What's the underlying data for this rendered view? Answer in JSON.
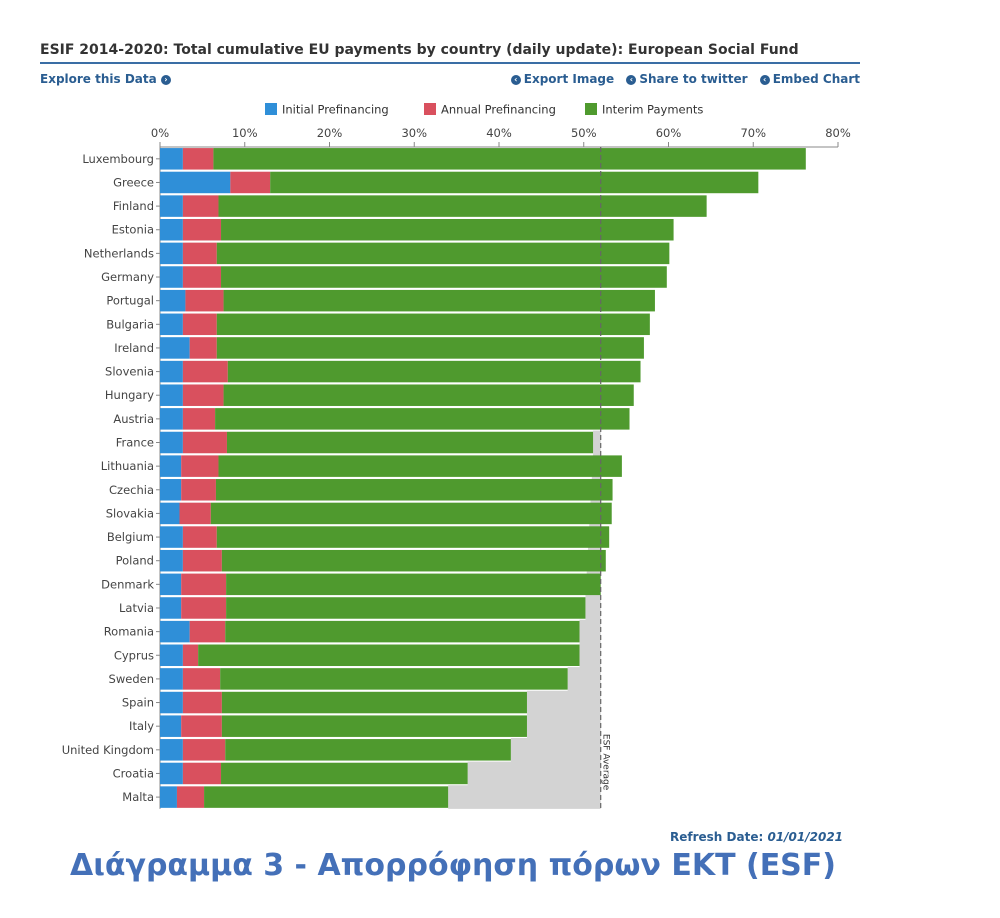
{
  "header": {
    "title": "ESIF 2014-2020: Total cumulative EU payments by country (daily update): European Social Fund",
    "explore_label": "Explore this Data",
    "export_label": "Export Image",
    "share_label": "Share to twitter",
    "embed_label": "Embed Chart"
  },
  "footer": {
    "refresh_label": "Refresh Date:",
    "refresh_date": "01/01/2021",
    "caption": "Διάγραμμα 3 - Απορρόφηση πόρων ΕΚΤ (ESF)"
  },
  "colors": {
    "initial": "#2f8fd8",
    "annual": "#d9505e",
    "interim": "#4f9a2e",
    "planned": "#d3d3d3",
    "link": "#2a5d91"
  },
  "icons": {
    "link_icon": "chevron-circle-icon"
  },
  "chart_data": {
    "type": "bar",
    "orientation": "horizontal",
    "stacked": true,
    "xlim": [
      0,
      80
    ],
    "x_ticks": [
      "0%",
      "10%",
      "20%",
      "30%",
      "40%",
      "50%",
      "60%",
      "70%",
      "80%"
    ],
    "legend_position": "top",
    "categories": [
      "Luxembourg",
      "Greece",
      "Finland",
      "Estonia",
      "Netherlands",
      "Germany",
      "Portugal",
      "Bulgaria",
      "Ireland",
      "Slovenia",
      "Hungary",
      "Austria",
      "France",
      "Lithuania",
      "Czechia",
      "Slovakia",
      "Belgium",
      "Poland",
      "Denmark",
      "Latvia",
      "Romania",
      "Cyprus",
      "Sweden",
      "Spain",
      "Italy",
      "United Kingdom",
      "Croatia",
      "Malta"
    ],
    "series": [
      {
        "name": "Initial Prefinancing",
        "color": "#2f8fd8",
        "values": [
          2.7,
          8.3,
          2.7,
          2.7,
          2.7,
          2.7,
          3.0,
          2.7,
          3.5,
          2.7,
          2.7,
          2.7,
          2.7,
          2.5,
          2.5,
          2.3,
          2.7,
          2.7,
          2.5,
          2.5,
          3.5,
          2.7,
          2.7,
          2.7,
          2.5,
          2.7,
          2.7,
          2.0
        ]
      },
      {
        "name": "Annual Prefinancing",
        "color": "#d9505e",
        "values": [
          3.6,
          4.7,
          4.2,
          4.5,
          4.0,
          4.5,
          4.5,
          4.0,
          3.2,
          5.3,
          4.8,
          3.8,
          5.2,
          4.4,
          4.1,
          3.7,
          4.0,
          4.6,
          5.3,
          5.3,
          4.2,
          1.8,
          4.4,
          4.6,
          4.8,
          5.0,
          4.5,
          3.2
        ]
      },
      {
        "name": "Interim Payments",
        "color": "#4f9a2e",
        "values": [
          69.9,
          57.6,
          57.6,
          53.4,
          53.4,
          52.6,
          50.9,
          51.1,
          50.4,
          48.7,
          48.4,
          48.9,
          43.2,
          47.6,
          46.8,
          47.3,
          46.3,
          45.3,
          44.2,
          42.4,
          41.8,
          45.0,
          41.0,
          36.0,
          36.0,
          33.7,
          29.1,
          28.8
        ]
      }
    ],
    "planned_area": {
      "name": "",
      "description_value_until_country": "Latvia",
      "level": 52.0
    },
    "reference_line": {
      "label": "ESF Average",
      "value": 52.0
    }
  }
}
